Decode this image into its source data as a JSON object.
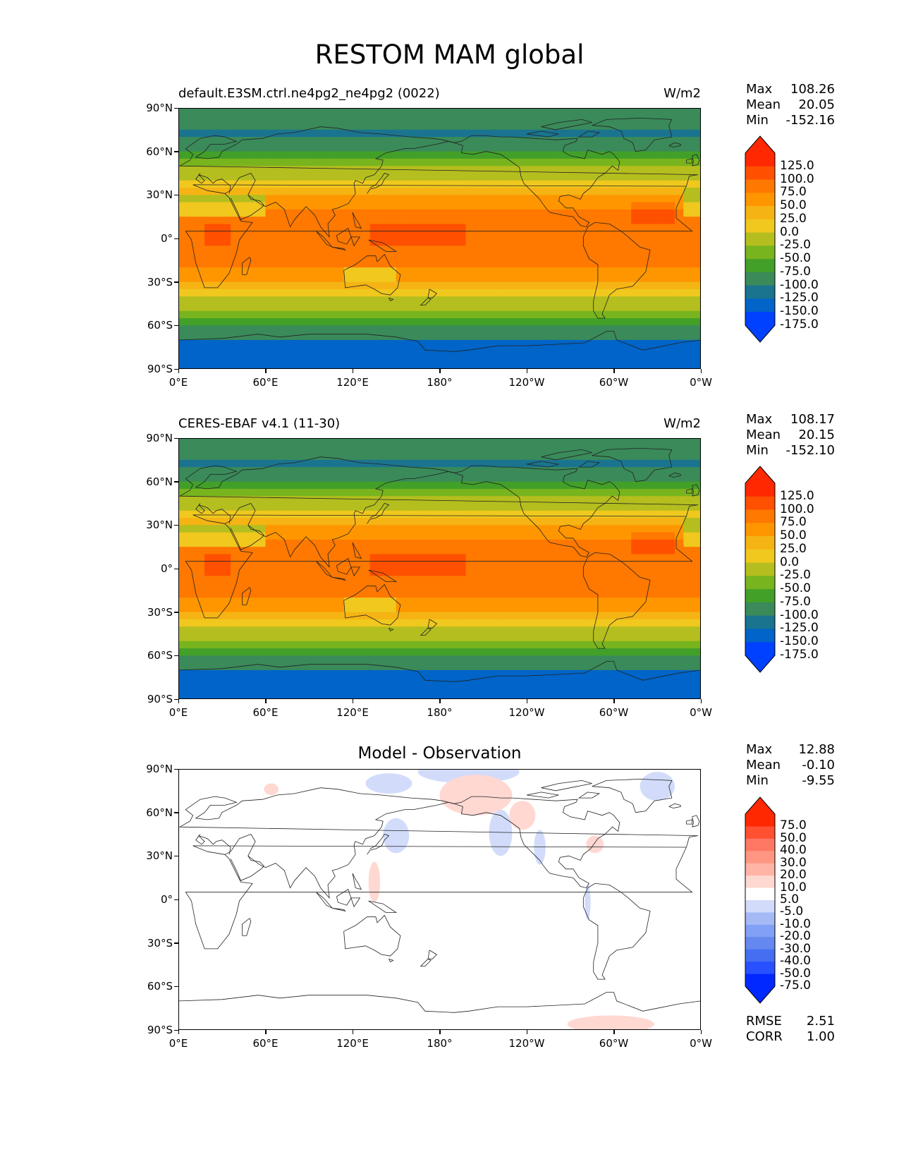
{
  "title": "RESTOM MAM global",
  "panels": [
    {
      "title_left": "default.E3SM.ctrl.ne4pg2_ne4pg2 (0022)",
      "title_right": "W/m2",
      "title_center": "",
      "stats": [
        {
          "label": "Max",
          "value": "108.26"
        },
        {
          "label": "Mean",
          "value": "20.05"
        },
        {
          "label": "Min",
          "value": "-152.16"
        }
      ],
      "colorbar_labels": [
        "125.0",
        "100.0",
        "75.0",
        "50.0",
        "25.0",
        "0.0",
        "-25.0",
        "-50.0",
        "-75.0",
        "-100.0",
        "-125.0",
        "-150.0",
        "-175.0"
      ]
    },
    {
      "title_left": "CERES-EBAF v4.1 (11-30)",
      "title_right": "W/m2",
      "title_center": "",
      "stats": [
        {
          "label": "Max",
          "value": "108.17"
        },
        {
          "label": "Mean",
          "value": "20.15"
        },
        {
          "label": "Min",
          "value": "-152.10"
        }
      ],
      "colorbar_labels": [
        "125.0",
        "100.0",
        "75.0",
        "50.0",
        "25.0",
        "0.0",
        "-25.0",
        "-50.0",
        "-75.0",
        "-100.0",
        "-125.0",
        "-150.0",
        "-175.0"
      ]
    },
    {
      "title_left": "",
      "title_right": "",
      "title_center": "Model - Observation",
      "stats": [
        {
          "label": "Max",
          "value": "12.88"
        },
        {
          "label": "Mean",
          "value": "-0.10"
        },
        {
          "label": "Min",
          "value": "-9.55"
        }
      ],
      "colorbar_labels": [
        "75.0",
        "50.0",
        "40.0",
        "30.0",
        "20.0",
        "10.0",
        "5.0",
        "-5.0",
        "-10.0",
        "-20.0",
        "-30.0",
        "-40.0",
        "-50.0",
        "-75.0"
      ],
      "extra_stats": [
        {
          "label": "RMSE",
          "value": "2.51"
        },
        {
          "label": "CORR",
          "value": "1.00"
        }
      ]
    }
  ],
  "lat_ticks": [
    "90°N",
    "60°N",
    "30°N",
    "0°",
    "30°S",
    "60°S",
    "90°S"
  ],
  "lon_ticks": [
    "0°E",
    "60°E",
    "120°E",
    "180°",
    "120°W",
    "60°W",
    "0°W"
  ],
  "colors": {
    "field_bands": [
      "#0040ff",
      "#0064c8",
      "#1a7490",
      "#3a8a5a",
      "#42a028",
      "#78b41e",
      "#b4be1e",
      "#f0c81e",
      "#f5b414",
      "#ff9600",
      "#ff7800",
      "#ff5000",
      "#ff2800"
    ],
    "diff_bands": [
      "#0028ff",
      "#2850ff",
      "#466ef0",
      "#6488f0",
      "#82a0f5",
      "#a5b9f5",
      "#d2dcfa",
      "#ffffff",
      "#ffd8d2",
      "#ffb4a5",
      "#ff9682",
      "#ff7864",
      "#ff5032",
      "#ff2800"
    ]
  }
}
